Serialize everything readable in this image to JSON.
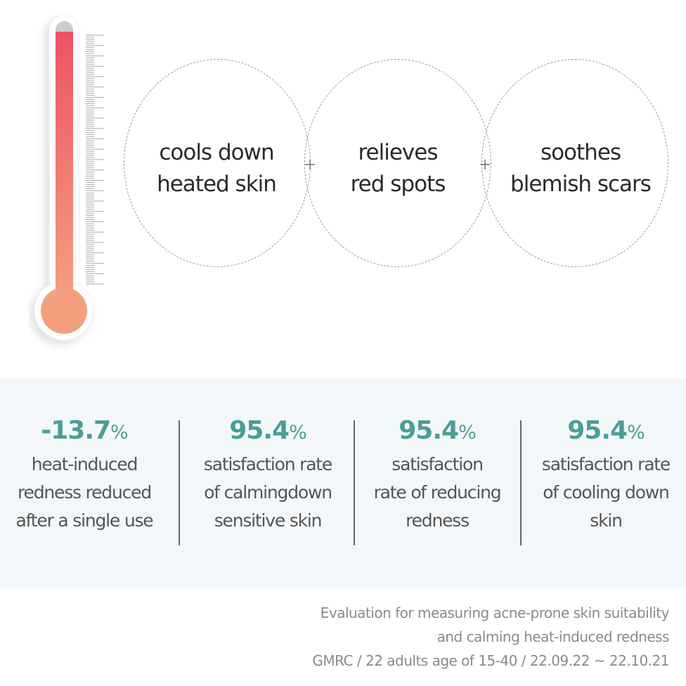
{
  "thermometer": {
    "icon": "thermometer-icon",
    "gradient_top": "#ec5366",
    "gradient_bottom": "#f4a07f"
  },
  "benefits": [
    {
      "line1": "cools down",
      "line2": "heated skin"
    },
    {
      "line1": "relieves",
      "line2": "red spots"
    },
    {
      "line1": "soothes",
      "line2": "blemish scars"
    }
  ],
  "plus_symbol": "+",
  "accent_color": "#4a9e97",
  "stats": [
    {
      "value": "-13.7",
      "unit": "%",
      "lines": [
        "heat-induced",
        "redness reduced",
        "after a single use"
      ]
    },
    {
      "value": "95.4",
      "unit": "%",
      "lines": [
        "satisfaction rate",
        "of calmingdown",
        "sensitive skin"
      ]
    },
    {
      "value": "95.4",
      "unit": "%",
      "lines": [
        "satisfaction",
        "rate of reducing",
        "redness"
      ]
    },
    {
      "value": "95.4",
      "unit": "%",
      "lines": [
        "satisfaction rate",
        "of cooling down",
        "skin"
      ]
    }
  ],
  "footnote": {
    "line1": "Evaluation for measuring acne-prone skin suitability",
    "line2": "and calming heat-induced redness",
    "line3": "GMRC / 22 adults age of 15-40 / 22.09.22 ~ 22.10.21"
  }
}
